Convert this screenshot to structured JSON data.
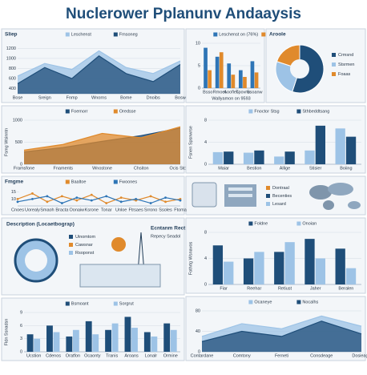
{
  "title": "Nuclerower Pplanunv Andaaysis",
  "notes": {
    "legend_box": [
      "Dontraal",
      "Becenties",
      "Lesard"
    ],
    "dashboard": [
      "Description (Locaetbograp)",
      "Uinomtom",
      "Cawsnar",
      "Rsoponst",
      "Ecntanm Rector",
      "Repecy Seadol"
    ]
  },
  "chart_data": [
    {
      "type": "area",
      "title": "Sliep",
      "categories": [
        "Bose",
        "Sreign",
        "Fnmp",
        "Wnorns",
        "Bome",
        "Dnoibs",
        "Bosw"
      ],
      "series": [
        {
          "name": "Leschenst",
          "color": "#9dc3e6",
          "values": [
            650,
            900,
            780,
            1150,
            820,
            700,
            950
          ]
        },
        {
          "name": "Fmsoneg",
          "color": "#1f4e79",
          "values": [
            500,
            820,
            600,
            1050,
            700,
            540,
            880
          ]
        }
      ],
      "ylim": [
        300,
        1300
      ],
      "yticks": [
        400,
        600,
        800,
        1000,
        1200
      ],
      "grid": true
    },
    {
      "type": "bar",
      "xlabel": "Wallyamon on 9593",
      "categories": [
        "Bsso",
        "Rmoet",
        "Aoofles",
        "Tpovrw",
        "Ssoanw"
      ],
      "series": [
        {
          "name": "Leschenst on (76%)",
          "color": "#2e75b6",
          "values": [
            9,
            7,
            5.5,
            4,
            6
          ]
        },
        {
          "name": "Sreivne",
          "color": "#e08a2c",
          "values": [
            4,
            8,
            3,
            2.5,
            3.5
          ]
        }
      ],
      "ylim": [
        0,
        10
      ],
      "yticks": [
        0,
        5,
        10
      ],
      "grid": true
    },
    {
      "type": "pie",
      "title": "Aroole",
      "categories": [
        "Crmsnd",
        "Stsrmen",
        "Foaas"
      ],
      "values": [
        55,
        25,
        20
      ],
      "colors": [
        "#1f4e79",
        "#9dc3e6",
        "#e08a2c"
      ]
    },
    {
      "type": "area",
      "ylabel": "Fsmg Wsinntn",
      "categories": [
        "Framsfone",
        "Fnaments",
        "Wnostone",
        "Chsiton",
        "Ocis Stoge"
      ],
      "series": [
        {
          "name": "Foemorr",
          "color": "#1f4e79",
          "values": [
            280,
            380,
            520,
            650,
            820
          ]
        },
        {
          "name": "Oredsse",
          "color": "#e08a2c",
          "values": [
            320,
            450,
            700,
            600,
            850
          ]
        }
      ],
      "ylim": [
        0,
        1000
      ],
      "yticks": [
        0,
        500,
        1000
      ],
      "grid": true
    },
    {
      "type": "bar",
      "ylabel": "Fsnen Spsnwrse",
      "categories": [
        "Maiar",
        "Bestion",
        "Allige",
        "Stisier",
        "Boiing"
      ],
      "series": [
        {
          "name": "Fnoctor Stsg",
          "color": "#9dc3e6",
          "values": [
            2.2,
            2.1,
            1.4,
            2.5,
            6.5
          ]
        },
        {
          "name": "Sthbeddtsang",
          "color": "#1f4e79",
          "values": [
            2.3,
            2.5,
            2.3,
            7.0,
            5.0
          ]
        }
      ],
      "ylim": [
        0,
        8
      ],
      "yticks": [
        0,
        4,
        8
      ],
      "grid": true
    },
    {
      "type": "line",
      "title": "Fmgme",
      "categories": [
        "Cnoes",
        "Uorealy",
        "Smaoh",
        "Bracta",
        "Oonaiw",
        "Ksrone",
        "Tonar",
        "Unloe",
        "Ftrsaes",
        "Srrono",
        "Ssoles",
        "Ftoma"
      ],
      "series": [
        {
          "name": "Baaltoe",
          "color": "#e08a2c",
          "values": [
            10,
            14,
            8,
            12,
            9,
            13,
            7,
            11,
            9,
            12,
            8,
            10
          ]
        },
        {
          "name": "Fwoones",
          "color": "#2e75b6",
          "values": [
            8,
            10,
            12,
            7,
            11,
            9,
            12,
            8,
            10,
            7,
            11,
            9
          ]
        }
      ],
      "ylim": [
        5,
        16
      ],
      "yticks": [
        10,
        15
      ],
      "grid": false
    },
    {
      "type": "bar",
      "ylabel": "Fldn Ssnadsn",
      "categories": [
        "Ucstion",
        "Cdenos",
        "Oratfon",
        "Ocaonty",
        "Tranis",
        "Aroans",
        "Lonalr",
        "Ormine"
      ],
      "series": [
        {
          "name": "Bsmoant",
          "color": "#1f4e79",
          "values": [
            4,
            6,
            3.5,
            7,
            5,
            8,
            4.5,
            6.5
          ]
        },
        {
          "name": "Sorgrut",
          "color": "#9dc3e6",
          "values": [
            3,
            4.5,
            5,
            4,
            6.5,
            5.5,
            3.5,
            5
          ]
        }
      ],
      "ylim": [
        0,
        9
      ],
      "yticks": [
        0,
        3,
        6,
        9
      ],
      "grid": true
    },
    {
      "type": "bar",
      "ylabel": "Fothrtg Wsnavos",
      "categories": [
        "Fiar",
        "Reehar",
        "Retiust",
        "Jaher",
        "Beralen"
      ],
      "series": [
        {
          "name": "Foldne",
          "color": "#1f4e79",
          "values": [
            6,
            4,
            5,
            7,
            5.5
          ]
        },
        {
          "name": "Onoian",
          "color": "#9dc3e6",
          "values": [
            3.5,
            5,
            6.5,
            4,
            2.5
          ]
        }
      ],
      "ylim": [
        0,
        8
      ],
      "yticks": [
        0,
        4,
        8
      ],
      "grid": true
    },
    {
      "type": "area",
      "categories": [
        "Contardane",
        "Comtony",
        "Ferneti",
        "Consdeage",
        "Dosieage"
      ],
      "series": [
        {
          "name": "Ocaneye",
          "color": "#9dc3e6",
          "values": [
            30,
            55,
            45,
            70,
            50
          ]
        },
        {
          "name": "Nocalhs",
          "color": "#1f4e79",
          "values": [
            20,
            40,
            30,
            60,
            35
          ]
        }
      ],
      "ylim": [
        0,
        80
      ],
      "yticks": [
        0,
        40,
        80
      ],
      "grid": true
    }
  ]
}
